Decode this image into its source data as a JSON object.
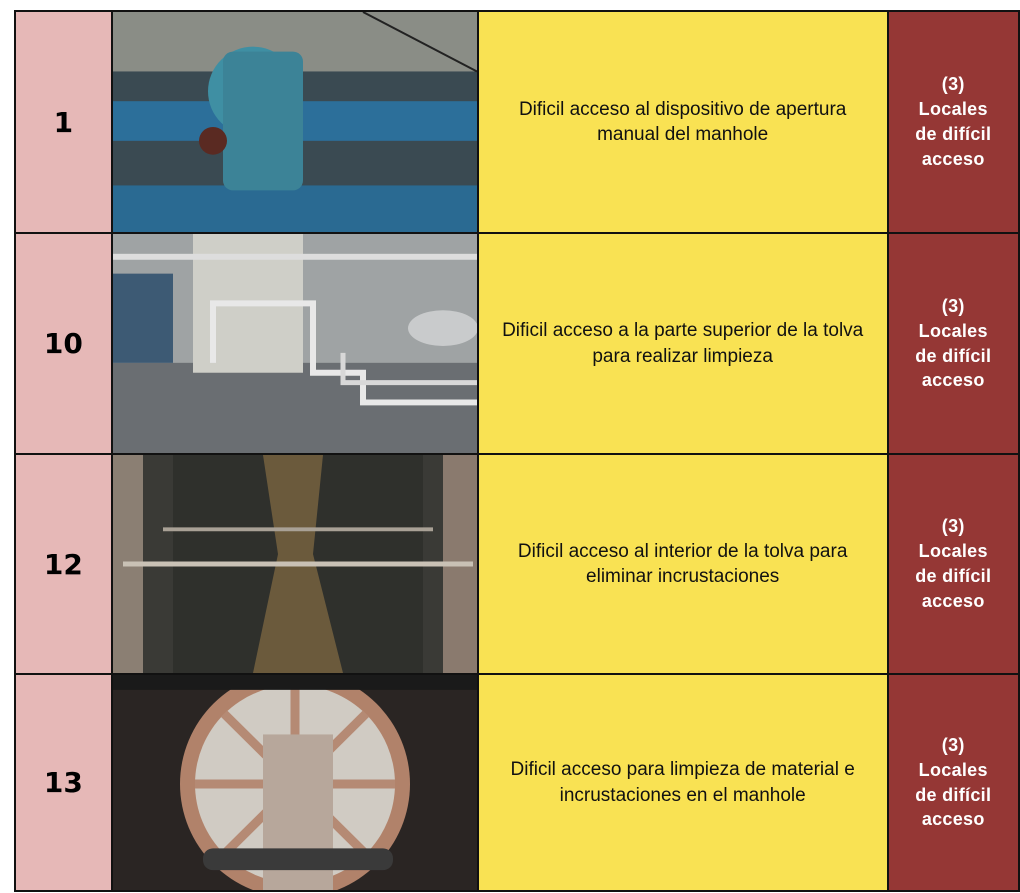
{
  "table": {
    "rows": [
      {
        "number": "1",
        "description": "Dificil acceso al dispositivo de apertura manual del manhole",
        "category": "(3)\nLocales\nde difícil\nacceso"
      },
      {
        "number": "10",
        "description": "Dificil acceso a la parte superior de la tolva para realizar limpieza",
        "category": "(3)\nLocales\nde difícil\nacceso"
      },
      {
        "number": "12",
        "description": "Dificil acceso al interior de la tolva para eliminar incrustaciones",
        "category": "(3)\nLocales\nde difícil\nacceso"
      },
      {
        "number": "13",
        "description": "Dificil acceso para limpieza de material e incrustaciones en el manhole",
        "category": "(3)\nLocales\nde difícil\nacceso"
      }
    ]
  }
}
